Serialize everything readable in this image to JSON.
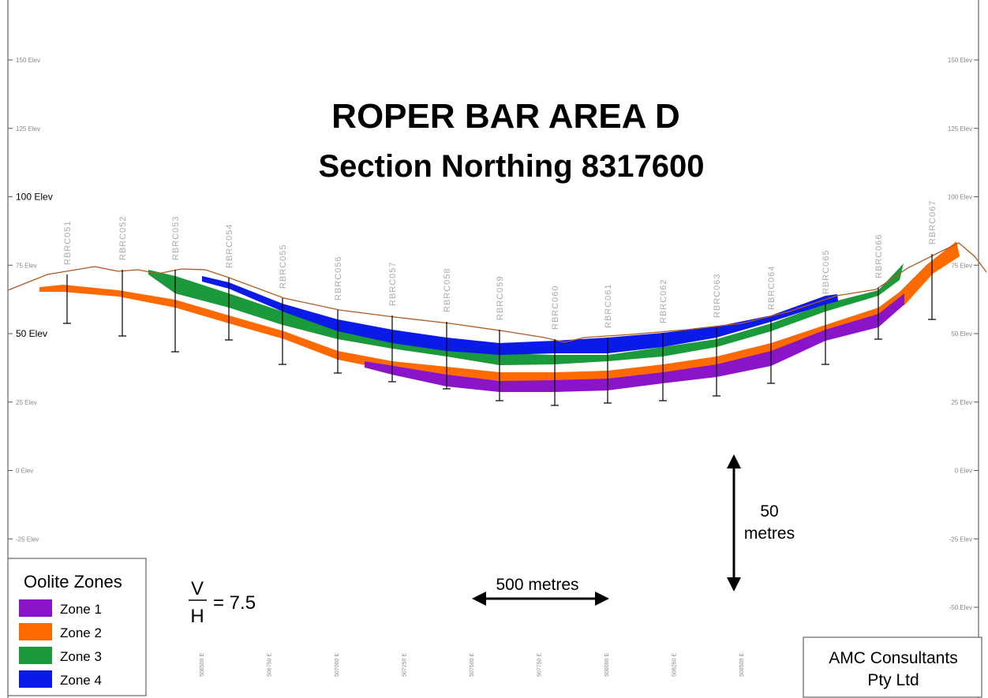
{
  "header": {
    "title": "ROPER BAR  AREA D",
    "subtitle": "Section  Northing  8317600"
  },
  "elevations_left": [
    "150 Elev",
    "125 Elev",
    "100 Elev",
    "75 Elev",
    "50 Elev",
    "25 Elev",
    "0 Elev",
    "-25 Elev"
  ],
  "elevations_right": [
    "150 Elev",
    "125 Elev",
    "100 Elev",
    "75 Elev",
    "50 Elev",
    "25 Elev",
    "0 Elev",
    "-25 Elev",
    "-50 Elev"
  ],
  "drillholes": [
    "RBRC051",
    "RBRC052",
    "RBRC053",
    "RBRC054",
    "RBRC055",
    "RBRC056",
    "RBRC057",
    "RBRC058",
    "RBRC059",
    "RBRC060",
    "RBRC061",
    "RBRC062",
    "RBRC063",
    "RBRC064",
    "RBRC065",
    "RBRC066",
    "RBRC067"
  ],
  "eastings": [
    "506500 E",
    "506750 E",
    "507000 E",
    "507250 E",
    "507500 E",
    "507750 E",
    "508000 E",
    "508250 E",
    "508500 E"
  ],
  "legend": {
    "title": "Oolite Zones",
    "items": [
      {
        "label": "Zone 1",
        "color": "#8a14c8"
      },
      {
        "label": "Zone 2",
        "color": "#ff6a00"
      },
      {
        "label": "Zone 3",
        "color": "#1a9a3a"
      },
      {
        "label": "Zone 4",
        "color": "#0a1ae8"
      }
    ]
  },
  "ratio": {
    "numerator": "V",
    "denominator": "H",
    "value": "= 7.5"
  },
  "scales": {
    "horizontal": "500 metres",
    "vertical": [
      "50",
      "metres"
    ]
  },
  "credit": [
    "AMC Consultants",
    "Pty Ltd"
  ]
}
